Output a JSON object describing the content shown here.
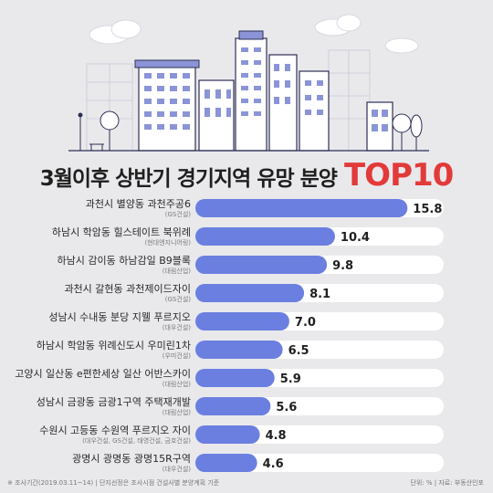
{
  "title": {
    "main": "3월이후 상반기 경기지역 유망 분양",
    "accent": "TOP10"
  },
  "colors": {
    "bar": "#6b7fe0",
    "track": "#ffffff",
    "title_accent": "#e23a3a",
    "background": "#e9e9ec"
  },
  "footer": {
    "left": "※ 조사기간(2019.03.11~14) | 단지선정은 조사시점 건설사별 분양계획 기준",
    "right": "단위: % | 자료: 부동산인포"
  },
  "chart_data": {
    "type": "bar",
    "orientation": "horizontal",
    "categories": [
      "과천시 별양동 과천주공6",
      "하남시 학암동 힐스테이트 북위례",
      "하남시 감이동 하남감일 B9블록",
      "과천시 갈현동 과천제이드자이",
      "성남시 수내동 분당 지웰 푸르지오",
      "하남시 학암동 위례신도시 우미린1차",
      "고양시 일산동 e편한세상 일산 어반스카이",
      "성남시 금광동 금광1구역 주택재개발",
      "수원시 고등동 수원역 푸르지오 자이",
      "광명시 광명동 광명15R구역"
    ],
    "builders": [
      "(GS건설)",
      "(현대엔지니어링)",
      "(대림산업)",
      "(GS건설)",
      "(대우건설)",
      "(우미건설)",
      "(대림산업)",
      "(대림산업)",
      "(대우건설, GS건설, 태영건설, 금호건설)",
      "(대우건설)"
    ],
    "values": [
      15.8,
      10.4,
      9.8,
      8.1,
      7.0,
      6.5,
      5.9,
      5.6,
      4.8,
      4.6
    ],
    "value_labels": [
      "15.8",
      "10.4",
      "9.8",
      "8.1",
      "7.0",
      "6.5",
      "5.9",
      "5.6",
      "4.8",
      "4.6"
    ],
    "xlim": [
      0,
      18.5
    ],
    "unit": "%"
  }
}
